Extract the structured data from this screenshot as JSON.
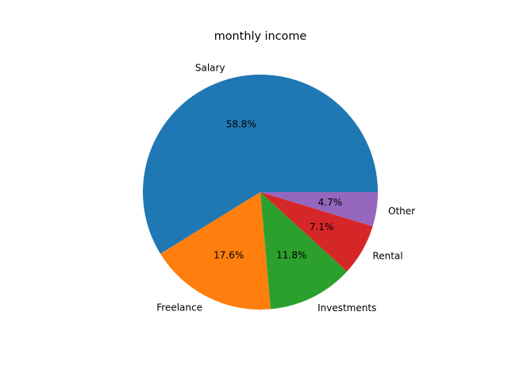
{
  "chart_data": {
    "type": "pie",
    "title": "monthly income",
    "categories": [
      "Salary",
      "Freelance",
      "Investments",
      "Rental",
      "Other"
    ],
    "values": [
      58.8,
      17.6,
      11.8,
      7.1,
      4.7
    ],
    "pct_labels": [
      "58.8%",
      "17.6%",
      "11.8%",
      "7.1%",
      "4.7%"
    ],
    "colors": [
      "#1f77b4",
      "#ff7f0e",
      "#2ca02c",
      "#d62728",
      "#9467bd"
    ],
    "start_angle_deg": 0,
    "direction": "counterclockwise",
    "legend": "none"
  }
}
